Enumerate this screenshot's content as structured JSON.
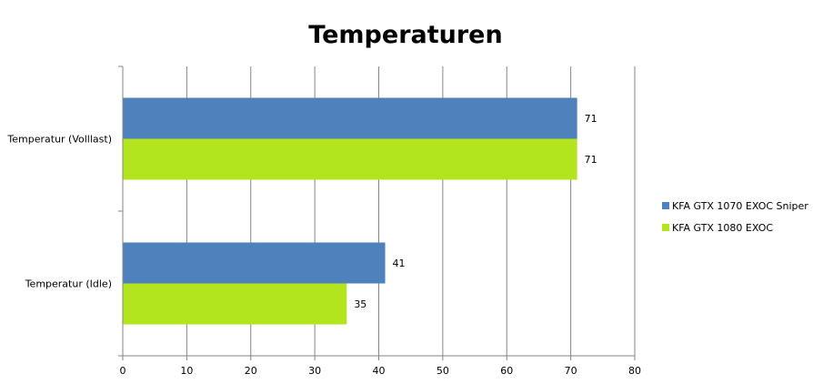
{
  "chart_data": {
    "type": "bar",
    "orientation": "horizontal",
    "title": "Temperaturen",
    "categories": [
      "Temperatur (Volllast)",
      "Temperatur (Idle)"
    ],
    "series": [
      {
        "name": "KFA GTX 1070 EXOC Sniper",
        "values": [
          71,
          41
        ],
        "color": "#4f81bd"
      },
      {
        "name": "KFA GTX 1080 EXOC",
        "values": [
          71,
          35
        ],
        "color": "#b3e51f"
      }
    ],
    "xlim": [
      0,
      80
    ],
    "xticks": [
      0,
      10,
      20,
      30,
      40,
      50,
      60,
      70,
      80
    ],
    "grid": true,
    "legend": "right",
    "data_labels": true
  }
}
